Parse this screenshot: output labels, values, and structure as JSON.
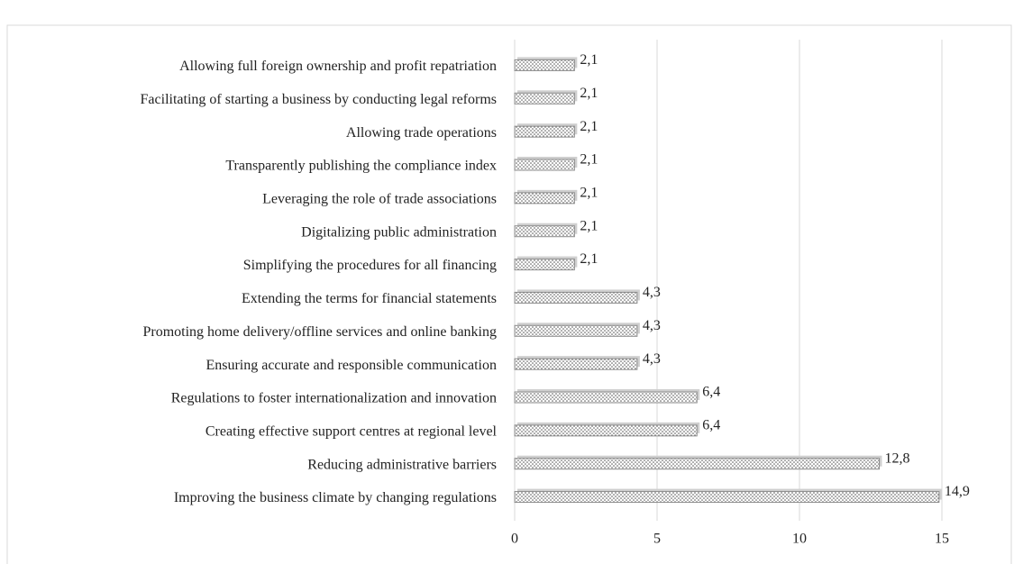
{
  "chart_data": {
    "type": "bar",
    "orientation": "horizontal",
    "categories": [
      "Allowing full foreign ownership and profit repatriation",
      "Facilitating of starting a business by conducting legal reforms",
      "Allowing trade operations",
      "Transparently publishing the compliance index",
      "Leveraging the role of trade associations",
      "Digitalizing public administration",
      "Simplifying the procedures for all financing",
      "Extending the terms for financial statements",
      "Promoting home delivery/offline services and online banking",
      "Ensuring accurate and responsible communication",
      "Regulations to foster internationalization and innovation",
      "Creating effective support centres at regional level",
      "Reducing administrative barriers",
      "Improving the business climate by changing regulations"
    ],
    "values": [
      2.1,
      2.1,
      2.1,
      2.1,
      2.1,
      2.1,
      2.1,
      4.3,
      4.3,
      4.3,
      6.4,
      6.4,
      12.8,
      14.9
    ],
    "value_labels": [
      "2,1",
      "2,1",
      "2,1",
      "2,1",
      "2,1",
      "2,1",
      "2,1",
      "4,3",
      "4,3",
      "4,3",
      "6,4",
      "6,4",
      "12,8",
      "14,9"
    ],
    "color": "#8c8c8c",
    "xlim": [
      0,
      15
    ],
    "xticks": [
      0,
      5,
      10,
      15
    ],
    "grid": true
  }
}
